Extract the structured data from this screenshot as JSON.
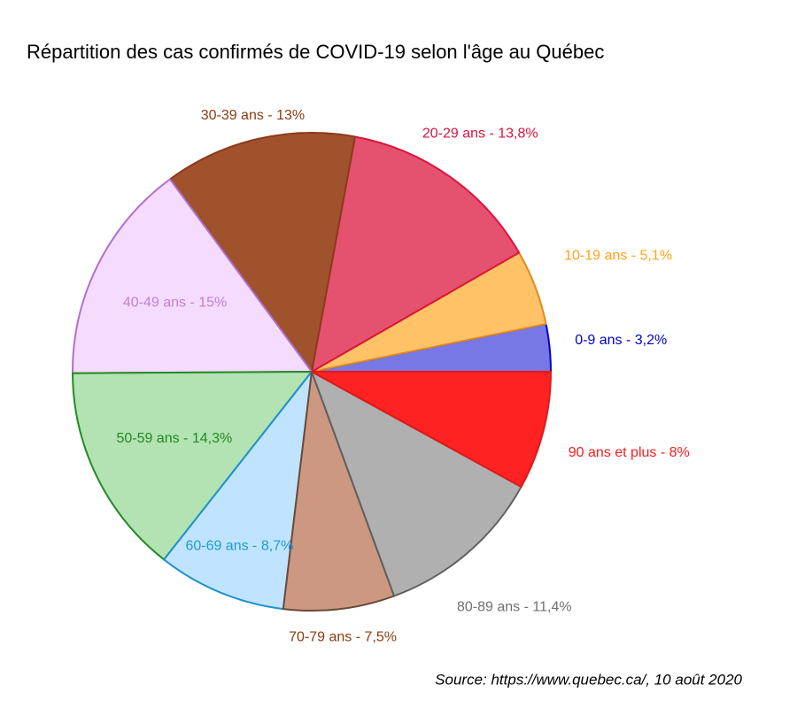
{
  "chart_data": {
    "type": "pie",
    "title": "Répartition des cas confirmés de COVID-19 selon l'âge au Québec",
    "source": "Source: https://www.quebec.ca/, 10 août 2020",
    "series": [
      {
        "name": "0-9 ans",
        "values": [
          3.2
        ],
        "value_labels": [
          "0-9 ans - 3,2%"
        ],
        "color": "#7777e6",
        "edge_color": "#0000cc",
        "label_color": "#0000cc"
      },
      {
        "name": "10-19 ans",
        "values": [
          5.1
        ],
        "value_labels": [
          "10-19 ans - 5,1%"
        ],
        "color": "#ffc266",
        "edge_color": "#e08a1e",
        "label_color": "#ffa31a"
      },
      {
        "name": "20-29 ans",
        "values": [
          13.8
        ],
        "value_labels": [
          "20-29 ans - 13,8%"
        ],
        "color": "#e5526f",
        "edge_color": "#dc143c",
        "label_color": "#dc143c"
      },
      {
        "name": "30-39 ans",
        "values": [
          13
        ],
        "value_labels": [
          "30-39 ans - 13%"
        ],
        "color": "#a0522d",
        "edge_color": "#8b3a1a",
        "label_color": "#8b3a0f"
      },
      {
        "name": "40-49 ans",
        "values": [
          15
        ],
        "value_labels": [
          "40-49 ans - 15%"
        ],
        "color": "#f5dcff",
        "edge_color": "#b070d0",
        "label_color": "#c080d8"
      },
      {
        "name": "50-59 ans",
        "values": [
          14.3
        ],
        "value_labels": [
          "50-59 ans - 14,3%"
        ],
        "color": "#b3e2b3",
        "edge_color": "#228b22",
        "label_color": "#228b22"
      },
      {
        "name": "60-69 ans",
        "values": [
          8.7
        ],
        "value_labels": [
          "60-69 ans - 8,7%"
        ],
        "color": "#c0e4ff",
        "edge_color": "#1e90d0",
        "label_color": "#1e9ad6"
      },
      {
        "name": "70-79 ans",
        "values": [
          7.5
        ],
        "value_labels": [
          "70-79 ans - 7,5%"
        ],
        "color": "#cd9881",
        "edge_color": "#6b4a3a",
        "label_color": "#8b3a0f"
      },
      {
        "name": "80-89 ans",
        "values": [
          11.4
        ],
        "value_labels": [
          "80-89 ans - 11,4%"
        ],
        "color": "#b0b0b0",
        "edge_color": "#606060",
        "label_color": "#707070"
      },
      {
        "name": "90 ans et plus",
        "values": [
          8
        ],
        "value_labels": [
          "90 ans et plus - 8%"
        ],
        "color": "#ff2222",
        "edge_color": "#e01818",
        "label_color": "#ff1a1a"
      }
    ]
  }
}
